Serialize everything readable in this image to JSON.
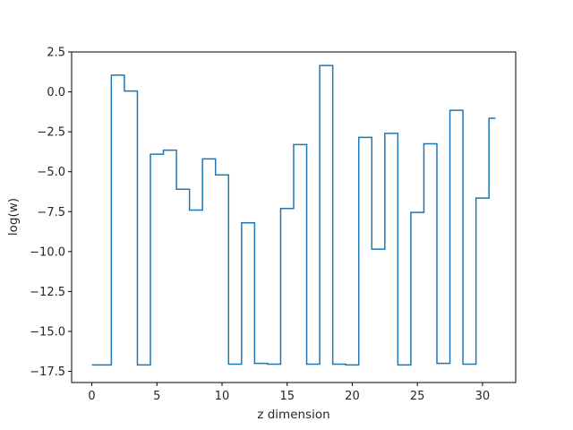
{
  "chart_data": {
    "type": "line",
    "drawstyle": "steps-mid",
    "title": "",
    "xlabel": "z dimension",
    "ylabel": "log(w)",
    "xlim": [
      -1.55,
      32.55
    ],
    "ylim": [
      -18.2,
      2.5
    ],
    "xticks": [
      0,
      5,
      10,
      15,
      20,
      25,
      30
    ],
    "yticks": [
      2.5,
      0.0,
      -2.5,
      -5.0,
      -7.5,
      -10.0,
      -12.5,
      -15.0,
      -17.5
    ],
    "ytick_labels": [
      "2.5",
      "0.0",
      "−2.5",
      "−5.0",
      "−7.5",
      "−10.0",
      "−12.5",
      "−15.0",
      "−17.5"
    ],
    "grid": false,
    "legend": "none",
    "series": [
      {
        "color": "#1f77b4",
        "x": [
          0,
          1,
          2,
          3,
          4,
          5,
          6,
          7,
          8,
          9,
          10,
          11,
          12,
          13,
          14,
          15,
          16,
          17,
          18,
          19,
          20,
          21,
          22,
          23,
          24,
          25,
          26,
          27,
          28,
          29,
          30,
          31
        ],
        "y": [
          -17.1,
          -17.1,
          1.05,
          0.05,
          -17.1,
          -3.9,
          -3.65,
          -6.1,
          -7.4,
          -4.2,
          -5.2,
          -17.05,
          -8.2,
          -17.0,
          -17.05,
          -7.3,
          -3.3,
          -17.05,
          1.65,
          -17.05,
          -17.1,
          -2.85,
          -9.85,
          -2.6,
          -17.1,
          -7.55,
          -3.25,
          -17.0,
          -1.15,
          -17.05,
          -6.65,
          -1.65
        ]
      }
    ]
  }
}
